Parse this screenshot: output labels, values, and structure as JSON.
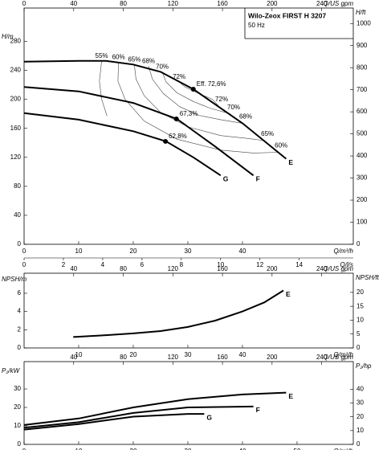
{
  "chart_data": [
    {
      "type": "line",
      "title": "Wilo-Zeox FIRST H 3207",
      "subtitle": "50 Hz",
      "xlabel": "Q/m³/h",
      "xlim": [
        0,
        60.3
      ],
      "xticks": [
        0,
        10,
        20,
        30,
        40
      ],
      "x2label": "Q/US gpm",
      "x2lim": [
        0,
        265.5
      ],
      "x2ticks": [
        0,
        40,
        80,
        120,
        160,
        200,
        240
      ],
      "x3label": "Q/l/s",
      "x3lim": [
        0,
        16.75
      ],
      "x3ticks": [
        0,
        2,
        4,
        6,
        8,
        10,
        12,
        14
      ],
      "ylabel": "H/m",
      "ylim": [
        0,
        326
      ],
      "yticks": [
        0,
        40,
        80,
        120,
        160,
        200,
        240,
        280
      ],
      "y2label": "H/ft",
      "y2lim": [
        0,
        1070
      ],
      "y2ticks": [
        0,
        100,
        200,
        300,
        400,
        500,
        600,
        700,
        800,
        900,
        1000
      ],
      "series": [
        {
          "name": "E",
          "color": "#000000",
          "x": [
            0,
            10,
            15,
            20,
            25,
            31,
            40,
            48
          ],
          "values": [
            252,
            253,
            253,
            248,
            238,
            214,
            167,
            118
          ]
        },
        {
          "name": "F",
          "color": "#000000",
          "x": [
            0,
            10,
            20,
            28,
            35,
            42
          ],
          "values": [
            217,
            211,
            195,
            173,
            135,
            95
          ]
        },
        {
          "name": "G",
          "color": "#000000",
          "x": [
            0,
            10,
            20,
            26,
            31,
            36
          ],
          "values": [
            181,
            172,
            156,
            142,
            120,
            95
          ]
        }
      ],
      "efficiency_lines": [
        {
          "label": "55%",
          "x": [
            14.2,
            13.8,
            14.2,
            15.2
          ],
          "values": [
            253,
            225,
            200,
            177
          ]
        },
        {
          "label": "60%",
          "x": [
            17.3,
            17.2,
            18.5,
            22,
            28,
            36,
            42,
            46.5
          ],
          "values": [
            251,
            225,
            200,
            170,
            145,
            130,
            126,
            127
          ]
        },
        {
          "label": "65%",
          "x": [
            20.2,
            20.5,
            22,
            25,
            30,
            36,
            41,
            44
          ],
          "values": [
            248,
            228,
            205,
            182,
            162,
            150,
            146,
            143
          ]
        },
        {
          "label": "68%",
          "x": [
            22.8,
            23.5,
            25.5,
            28.5,
            32,
            36,
            40
          ],
          "values": [
            246,
            228,
            208,
            190,
            178,
            172,
            167
          ]
        },
        {
          "label": "70%",
          "x": [
            25.3,
            26,
            28,
            31,
            34,
            37.8
          ],
          "values": [
            238,
            224,
            209,
            197,
            188,
            180
          ]
        },
        {
          "label": "72%",
          "x": [
            28.4,
            29.5,
            32,
            34.5,
            35.6
          ],
          "values": [
            224,
            217,
            208,
            200,
            191
          ]
        }
      ],
      "points": [
        {
          "label": "Eff. 72,6%",
          "x": 31,
          "y": 214
        },
        {
          "label": "67,3%",
          "x": 27.9,
          "y": 173
        },
        {
          "label": "62,8%",
          "x": 25.9,
          "y": 142
        }
      ]
    },
    {
      "type": "line",
      "xlabel": "Q/m³/h",
      "xlim": [
        0,
        60.3
      ],
      "xticks": [
        10,
        20,
        30,
        40
      ],
      "x2label": "Q/US gpm",
      "x2lim": [
        0,
        265.5
      ],
      "x2ticks": [
        40,
        80,
        120,
        160,
        200,
        240
      ],
      "ylabel": "NPSH/m",
      "ylim": [
        0,
        8.2
      ],
      "yticks": [
        0,
        2,
        4,
        6
      ],
      "y2label": "NPSH/ft",
      "y2lim": [
        0,
        26.9
      ],
      "y2ticks": [
        0,
        5,
        10,
        15,
        20
      ],
      "series": [
        {
          "name": "E",
          "color": "#000000",
          "x": [
            9,
            15,
            20,
            25,
            30,
            35,
            40,
            44,
            47.5
          ],
          "values": [
            1.2,
            1.4,
            1.6,
            1.85,
            2.3,
            3,
            4,
            5,
            6.3
          ]
        }
      ]
    },
    {
      "type": "line",
      "xlabel": "Q/m³/h",
      "xlim": [
        0,
        60.3
      ],
      "xticks": [
        0,
        10,
        20,
        30,
        40,
        50
      ],
      "x2label": "Q/US gpm",
      "x2lim": [
        0,
        265.5
      ],
      "x2ticks": [
        40,
        80,
        120,
        160,
        200,
        240
      ],
      "ylabel": "P₂/kW",
      "ylim": [
        0,
        44.8
      ],
      "yticks": [
        0,
        10,
        20,
        30
      ],
      "y2label": "P₂/hp",
      "y2lim": [
        0,
        60
      ],
      "y2ticks": [
        0,
        10,
        20,
        30,
        40
      ],
      "series": [
        {
          "name": "E",
          "color": "#000000",
          "x": [
            0,
            10,
            20,
            30,
            40,
            48
          ],
          "values": [
            10.5,
            14,
            20,
            24.5,
            27,
            28
          ]
        },
        {
          "name": "F",
          "color": "#000000",
          "x": [
            0,
            10,
            20,
            30,
            42
          ],
          "values": [
            9,
            12,
            17,
            20,
            20.5
          ]
        },
        {
          "name": "G",
          "color": "#000000",
          "x": [
            0,
            10,
            20,
            30,
            33
          ],
          "values": [
            8,
            11,
            15,
            16.5,
            16.5
          ]
        }
      ]
    }
  ]
}
